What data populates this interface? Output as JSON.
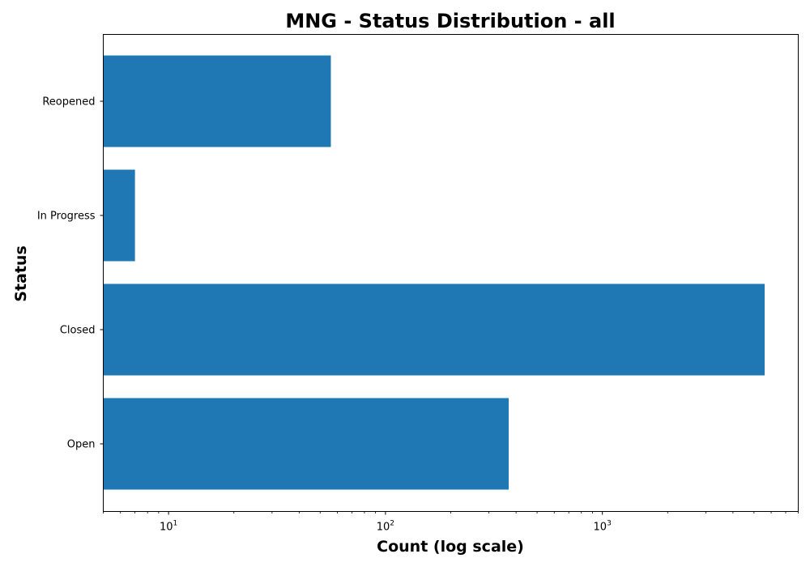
{
  "chart_data": {
    "type": "bar",
    "orientation": "horizontal",
    "title": "MNG - Status Distribution - all",
    "xlabel": "Count (log scale)",
    "ylabel": "Status",
    "x_scale": "log",
    "xlim": [
      5,
      8000
    ],
    "categories": [
      "Open",
      "Closed",
      "In Progress",
      "Reopened"
    ],
    "values": [
      370,
      5600,
      7,
      56
    ],
    "bar_color": "#1f77b4",
    "grid": false,
    "legend": "none",
    "x_ticks": [
      {
        "value": 10,
        "base": "10",
        "exp": "1"
      },
      {
        "value": 100,
        "base": "10",
        "exp": "2"
      },
      {
        "value": 1000,
        "base": "10",
        "exp": "3"
      }
    ]
  }
}
